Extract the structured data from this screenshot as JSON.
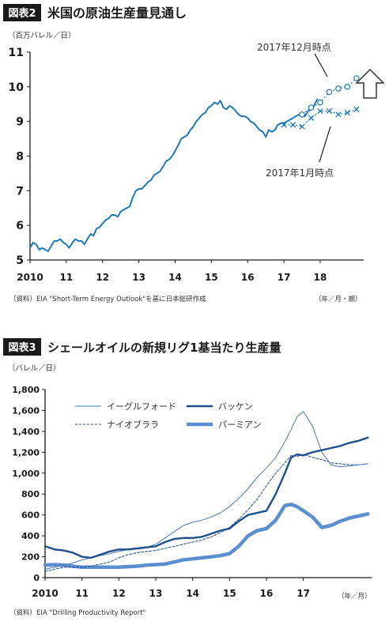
{
  "colors": {
    "dark_blue": "#1f4e8c",
    "mid_blue": "#1f7ab8",
    "light_blue": "#5b8fd0",
    "thin_blue": "#4a78b8",
    "badge_bg": "#1a1a1a"
  },
  "figure1": {
    "badge": "図表2",
    "title": "米国の原油生産量見通し",
    "unit": "（百万バレル／日）",
    "source": "（資料）EIA \"Short-Term Energy Outlook\"を基に日本総研作成",
    "time_unit": "（年／月・期）",
    "annotation_dec": "2017年12月時点",
    "annotation_jan": "2017年1月時点",
    "arrow_icon": "up-arrow-icon"
  },
  "figure2": {
    "badge": "図表3",
    "title": "シェールオイルの新規リグ1基当たり生産量",
    "unit": "（バレル／日）",
    "source": "（資料）EIA \"Drilling Productivity Report\"",
    "time_unit": "（年／月）"
  },
  "chart_data": [
    {
      "type": "line",
      "title": "米国の原油生産量見通し",
      "ylabel": "（百万バレル／日）",
      "xlabel": "（年／月・期）",
      "ylim": [
        5,
        11
      ],
      "xlim": [
        2010,
        2019.2
      ],
      "x_ticks": [
        {
          "value": 2010,
          "label": "2010"
        },
        {
          "value": 2011,
          "label": "11"
        },
        {
          "value": 2012,
          "label": "12"
        },
        {
          "value": 2013,
          "label": "13"
        },
        {
          "value": 2014,
          "label": "14"
        },
        {
          "value": 2015,
          "label": "15"
        },
        {
          "value": 2016,
          "label": "16"
        },
        {
          "value": 2017,
          "label": "17"
        },
        {
          "value": 2018,
          "label": "18"
        }
      ],
      "y_ticks": [
        {
          "value": 5,
          "label": "5"
        },
        {
          "value": 6,
          "label": "6"
        },
        {
          "value": 7,
          "label": "7"
        },
        {
          "value": 8,
          "label": "8"
        },
        {
          "value": 9,
          "label": "9"
        },
        {
          "value": 10,
          "label": "10"
        },
        {
          "value": 11,
          "label": "11"
        }
      ],
      "series": [
        {
          "style": "solid",
          "x": [
            2010,
            2010.08,
            2010.17,
            2010.25,
            2010.33,
            2010.42,
            2010.5,
            2010.58,
            2010.67,
            2010.75,
            2010.83,
            2010.92,
            2011,
            2011.08,
            2011.17,
            2011.25,
            2011.33,
            2011.42,
            2011.5,
            2011.58,
            2011.67,
            2011.75,
            2011.83,
            2011.92,
            2012,
            2012.08,
            2012.17,
            2012.25,
            2012.33,
            2012.42,
            2012.5,
            2012.58,
            2012.67,
            2012.75,
            2012.83,
            2012.92,
            2013,
            2013.08,
            2013.17,
            2013.25,
            2013.33,
            2013.42,
            2013.5,
            2013.58,
            2013.67,
            2013.75,
            2013.83,
            2013.92,
            2014,
            2014.08,
            2014.17,
            2014.25,
            2014.33,
            2014.42,
            2014.5,
            2014.58,
            2014.67,
            2014.75,
            2014.83,
            2014.92,
            2015,
            2015.08,
            2015.17,
            2015.25,
            2015.33,
            2015.42,
            2015.5,
            2015.58,
            2015.67,
            2015.75,
            2015.83,
            2015.92,
            2016,
            2016.08,
            2016.17,
            2016.25,
            2016.33,
            2016.42,
            2016.5,
            2016.58,
            2016.67,
            2016.75,
            2016.83,
            2016.92,
            2017,
            2017.08,
            2017.17,
            2017.25,
            2017.33,
            2017.42,
            2017.5,
            2017.58,
            2017.67,
            2017.75,
            2017.83,
            2017.92
          ],
          "values": [
            5.35,
            5.5,
            5.45,
            5.3,
            5.35,
            5.3,
            5.25,
            5.4,
            5.55,
            5.55,
            5.6,
            5.5,
            5.45,
            5.35,
            5.5,
            5.6,
            5.55,
            5.55,
            5.45,
            5.6,
            5.75,
            5.7,
            5.9,
            5.95,
            6.05,
            6.15,
            6.2,
            6.3,
            6.3,
            6.25,
            6.4,
            6.45,
            6.5,
            6.55,
            6.8,
            7.0,
            7.05,
            7.05,
            7.15,
            7.25,
            7.3,
            7.45,
            7.5,
            7.55,
            7.7,
            7.85,
            7.9,
            8.0,
            8.15,
            8.3,
            8.5,
            8.55,
            8.6,
            8.75,
            8.85,
            9.0,
            9.1,
            9.2,
            9.25,
            9.4,
            9.45,
            9.55,
            9.5,
            9.6,
            9.4,
            9.35,
            9.45,
            9.4,
            9.3,
            9.2,
            9.15,
            9.15,
            9.1,
            9.0,
            8.95,
            8.85,
            8.75,
            8.7,
            8.55,
            8.75,
            8.7,
            8.75,
            8.9,
            8.95,
            8.95,
            9.0,
            9.05,
            9.1,
            9.15,
            9.2,
            9.15,
            9.15,
            9.3,
            9.35,
            9.45,
            9.65
          ]
        },
        {
          "name": "2017年12月時点",
          "style": "dashed",
          "marker": "circle",
          "x": [
            2017.5,
            2017.75,
            2018.0,
            2018.25,
            2018.5,
            2018.75,
            2019.0
          ],
          "values": [
            9.2,
            9.4,
            9.55,
            9.85,
            9.95,
            10.0,
            10.25
          ]
        },
        {
          "name": "2017年1月時点",
          "style": "dashed",
          "marker": "x",
          "x": [
            2017.0,
            2017.25,
            2017.5,
            2017.75,
            2018.0,
            2018.25,
            2018.5,
            2018.75,
            2019.0
          ],
          "values": [
            8.9,
            8.9,
            8.85,
            9.1,
            9.3,
            9.3,
            9.2,
            9.25,
            9.35
          ]
        }
      ]
    },
    {
      "type": "line",
      "title": "シェールオイルの新規リグ1基当たり生産量",
      "ylabel": "（バレル／日）",
      "xlabel": "（年／月）",
      "ylim": [
        0,
        1800
      ],
      "xlim": [
        2010,
        2018.85
      ],
      "legend_position": "top",
      "x_ticks": [
        {
          "value": 2010,
          "label": "2010"
        },
        {
          "value": 2011,
          "label": "11"
        },
        {
          "value": 2012,
          "label": "12"
        },
        {
          "value": 2013,
          "label": "13"
        },
        {
          "value": 2014,
          "label": "14"
        },
        {
          "value": 2015,
          "label": "15"
        },
        {
          "value": 2016,
          "label": "16"
        },
        {
          "value": 2017,
          "label": "17"
        }
      ],
      "y_ticks": [
        {
          "value": 0,
          "label": "0"
        },
        {
          "value": 200,
          "label": "200"
        },
        {
          "value": 400,
          "label": "400"
        },
        {
          "value": 600,
          "label": "600"
        },
        {
          "value": 800,
          "label": "800"
        },
        {
          "value": 1000,
          "label": "1,000"
        },
        {
          "value": 1200,
          "label": "1,200"
        },
        {
          "value": 1400,
          "label": "1,400"
        },
        {
          "value": 1600,
          "label": "1,600"
        },
        {
          "value": 1800,
          "label": "1,800"
        }
      ],
      "x": [
        2010,
        2010.25,
        2010.5,
        2010.75,
        2011,
        2011.25,
        2011.5,
        2011.75,
        2012,
        2012.25,
        2012.5,
        2012.75,
        2013,
        2013.25,
        2013.5,
        2013.75,
        2014,
        2014.25,
        2014.5,
        2014.75,
        2015,
        2015.25,
        2015.5,
        2015.75,
        2016,
        2016.25,
        2016.5,
        2016.67,
        2016.83,
        2017,
        2017.25,
        2017.5,
        2017.75,
        2018,
        2018.25,
        2018.5,
        2018.75
      ],
      "series": [
        {
          "name": "イーグルフォード",
          "style": "thin",
          "values": [
            80,
            100,
            120,
            140,
            170,
            190,
            210,
            230,
            250,
            270,
            280,
            290,
            320,
            380,
            440,
            500,
            530,
            550,
            580,
            620,
            680,
            760,
            850,
            960,
            1050,
            1150,
            1300,
            1420,
            1540,
            1590,
            1450,
            1200,
            1080,
            1060,
            1070,
            1080,
            1090
          ]
        },
        {
          "name": "バッケン",
          "style": "thick",
          "values": [
            300,
            270,
            260,
            240,
            200,
            190,
            220,
            250,
            270,
            270,
            280,
            290,
            300,
            340,
            370,
            380,
            380,
            390,
            420,
            450,
            470,
            540,
            600,
            620,
            640,
            800,
            1000,
            1150,
            1180,
            1170,
            1200,
            1220,
            1240,
            1260,
            1290,
            1310,
            1340
          ]
        },
        {
          "name": "ナイオブララ",
          "style": "dashed",
          "values": [
            60,
            80,
            100,
            100,
            100,
            110,
            130,
            150,
            190,
            220,
            240,
            250,
            260,
            280,
            300,
            320,
            340,
            360,
            390,
            430,
            480,
            560,
            650,
            750,
            880,
            1000,
            1100,
            1170,
            1160,
            1180,
            1150,
            1130,
            1100,
            1090,
            1080,
            1080,
            1090
          ]
        },
        {
          "name": "パーミアン",
          "style": "thickest",
          "values": [
            120,
            125,
            120,
            110,
            100,
            100,
            100,
            100,
            100,
            105,
            110,
            120,
            125,
            130,
            150,
            170,
            180,
            190,
            200,
            210,
            230,
            300,
            400,
            450,
            470,
            550,
            690,
            700,
            680,
            640,
            580,
            480,
            500,
            540,
            570,
            590,
            610
          ]
        }
      ]
    }
  ]
}
